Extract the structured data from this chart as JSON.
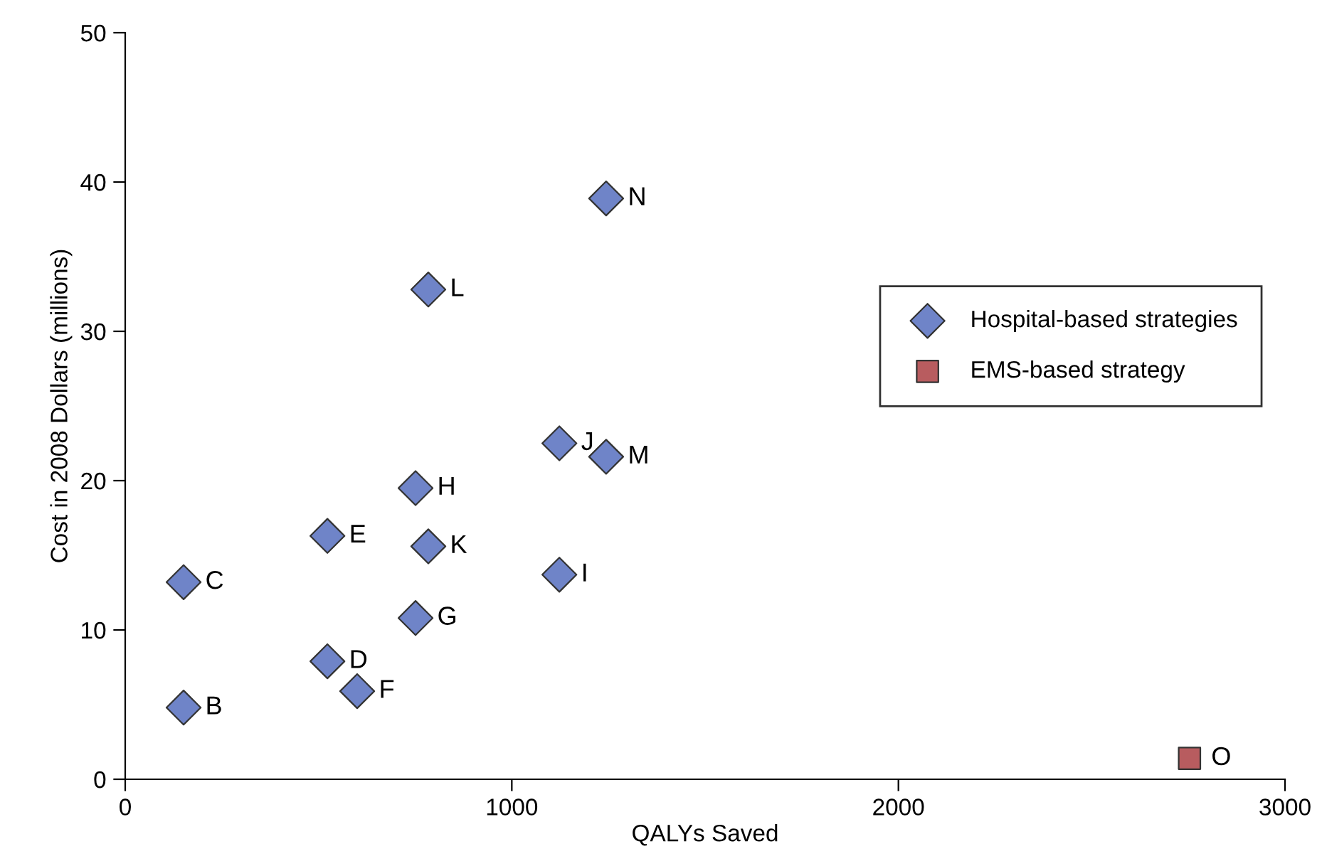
{
  "chart_data": {
    "type": "scatter",
    "xlabel": "QALYs Saved",
    "ylabel": "Cost in 2008 Dollars (millions)",
    "xlim": [
      0,
      3000
    ],
    "xticks": [
      0,
      1000,
      2000,
      3000
    ],
    "ylim": [
      0,
      50
    ],
    "yticks": [
      0,
      10,
      20,
      30,
      40,
      50
    ],
    "grid": false,
    "legend": "right",
    "series": [
      {
        "name": "Hospital-based strategies",
        "color": "#6f84c8",
        "marker": "diamond",
        "x": [
          151,
          151,
          523,
          523,
          600,
          751,
          751,
          1123,
          1123,
          784,
          784,
          1244,
          1244
        ],
        "values": [
          4.8,
          13.2,
          7.9,
          16.3,
          5.9,
          10.8,
          19.5,
          13.7,
          22.5,
          15.6,
          32.8,
          21.6,
          38.9
        ]
      },
      {
        "name": "EMS-based strategy",
        "color": "#b85c5f",
        "marker": "square",
        "x": [
          2753
        ],
        "values": [
          1.4
        ]
      }
    ],
    "annotations": [
      {
        "text": "B",
        "x": 151,
        "y": 4.8
      },
      {
        "text": "C",
        "x": 151,
        "y": 13.2
      },
      {
        "text": "D",
        "x": 523,
        "y": 7.9
      },
      {
        "text": "E",
        "x": 523,
        "y": 16.3
      },
      {
        "text": "F",
        "x": 600,
        "y": 5.9
      },
      {
        "text": "G",
        "x": 751,
        "y": 10.8
      },
      {
        "text": "H",
        "x": 751,
        "y": 19.5
      },
      {
        "text": "I",
        "x": 1123,
        "y": 13.7
      },
      {
        "text": "J",
        "x": 1123,
        "y": 22.5
      },
      {
        "text": "K",
        "x": 784,
        "y": 15.6
      },
      {
        "text": "L",
        "x": 784,
        "y": 32.8
      },
      {
        "text": "M",
        "x": 1244,
        "y": 21.6
      },
      {
        "text": "N",
        "x": 1244,
        "y": 38.9
      },
      {
        "text": "O",
        "x": 2753,
        "y": 1.4
      }
    ]
  }
}
